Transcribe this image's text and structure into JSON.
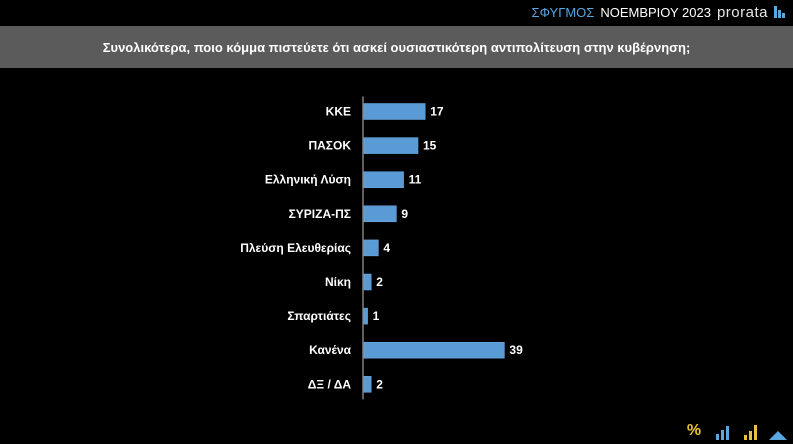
{
  "brand": {
    "survey": "ΣΦΥΓΜΟΣ",
    "period": "ΝΟΕΜΒΡΙΟΥ 2023",
    "logo": "prorata"
  },
  "question": "Συνολικότερα, ποιο κόμμα πιστεύετε ότι ασκεί ουσιαστικότερη αντιπολίτευση στην κυβέρνηση;",
  "chart_data": {
    "type": "bar",
    "orientation": "horizontal",
    "categories": [
      "ΚΚΕ",
      "ΠΑΣΟΚ",
      "Ελληνική Λύση",
      "ΣΥΡΙΖΑ-ΠΣ",
      "Πλεύση Ελευθερίας",
      "Νίκη",
      "Σπαρτιάτες",
      "Κανένα",
      "ΔΞ / ΔΑ"
    ],
    "values": [
      17,
      15,
      11,
      9,
      4,
      2,
      1,
      39,
      2
    ],
    "value_labels": [
      "17",
      "15",
      "11",
      "9",
      "4",
      "2",
      "1",
      "39",
      "2"
    ],
    "xlim": [
      0,
      39
    ],
    "grid": false,
    "bar_color": "#5b9bd5"
  },
  "colors": {
    "background": "#000000",
    "header_bar": "#5b5b5b",
    "accent": "#5aa7e0"
  },
  "footer_icons": [
    "percent-icon",
    "bar-chart-icon",
    "growth-chart-icon",
    "house-icon"
  ]
}
